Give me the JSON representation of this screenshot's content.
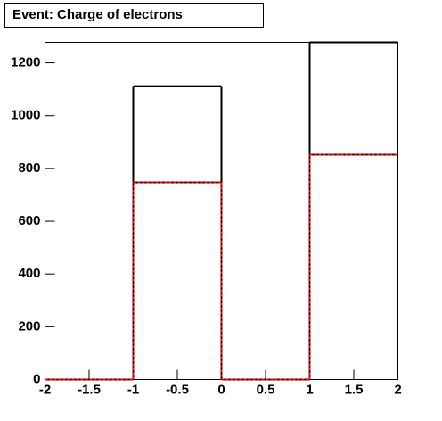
{
  "chart_data": {
    "type": "histogram",
    "title": "Event: Charge of electrons",
    "bins": [
      -2,
      -1,
      0,
      1,
      2
    ],
    "series": [
      {
        "color": "#000000",
        "values": [
          0,
          1112,
          0,
          1278
        ]
      },
      {
        "color": "#ff0000",
        "values": [
          0,
          747,
          0,
          852
        ]
      }
    ],
    "xlim": [
      -2,
      2
    ],
    "xticks": [
      -2,
      -1.5,
      -1,
      -0.5,
      0,
      0.5,
      1,
      1.5,
      2
    ],
    "ylim": [
      0,
      1278
    ],
    "yticks": [
      0,
      200,
      400,
      600,
      800,
      1000,
      1200
    ]
  }
}
